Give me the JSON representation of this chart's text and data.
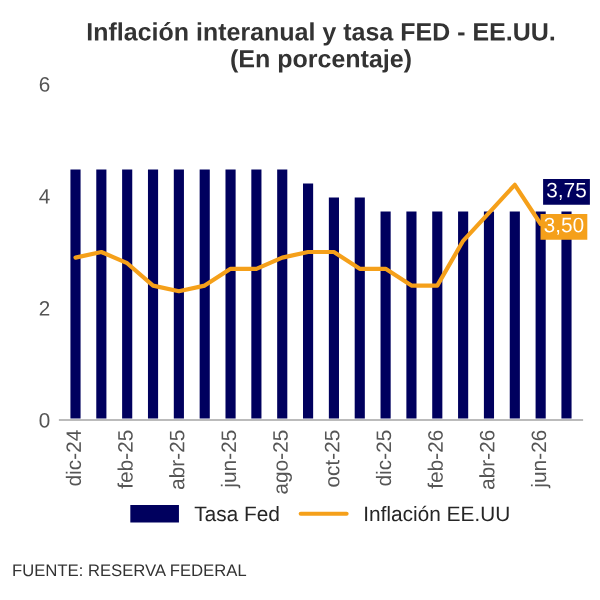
{
  "chart_data": {
    "type": "bar",
    "title": "Inflación interanual y tasa FED - EE.UU.\n(En porcentaje)",
    "categories": [
      "dic-24",
      null,
      "feb-25",
      null,
      "abr-25",
      null,
      "jun-25",
      null,
      "ago-25",
      null,
      "oct-25",
      null,
      "dic-25",
      null,
      "feb-26",
      null,
      "abr-26",
      null,
      "jun-26",
      null
    ],
    "series": [
      {
        "name": "Tasa Fed",
        "color": "#00005e",
        "values": [
          4.5,
          4.5,
          4.5,
          4.5,
          4.5,
          4.5,
          4.5,
          4.5,
          4.5,
          4.25,
          4.0,
          4.0,
          3.75,
          3.75,
          3.75,
          3.75,
          3.75,
          3.75,
          3.75,
          3.75
        ],
        "value_labels": [
          null,
          null,
          null,
          null,
          null,
          null,
          null,
          null,
          null,
          null,
          null,
          null,
          null,
          null,
          null,
          null,
          null,
          null,
          null,
          "3,75"
        ]
      },
      {
        "name": "Inflación EE.UU",
        "type": "line",
        "color": "#f5a01a",
        "values": [
          2.9,
          3.0,
          2.8,
          2.4,
          2.3,
          2.4,
          2.7,
          2.7,
          2.9,
          3.0,
          3.0,
          2.7,
          2.7,
          2.4,
          2.4,
          3.2,
          3.7,
          4.2,
          3.5,
          null
        ],
        "value_labels": [
          null,
          null,
          null,
          null,
          null,
          null,
          null,
          null,
          null,
          null,
          null,
          null,
          null,
          null,
          null,
          null,
          null,
          null,
          "3,50",
          null
        ]
      }
    ],
    "ylim": [
      0,
      6
    ],
    "yticks": [
      0,
      2,
      4,
      6
    ],
    "grid": false,
    "legend": "bottom",
    "annotations": [
      "FUENTE: RESERVA FEDERAL"
    ]
  }
}
